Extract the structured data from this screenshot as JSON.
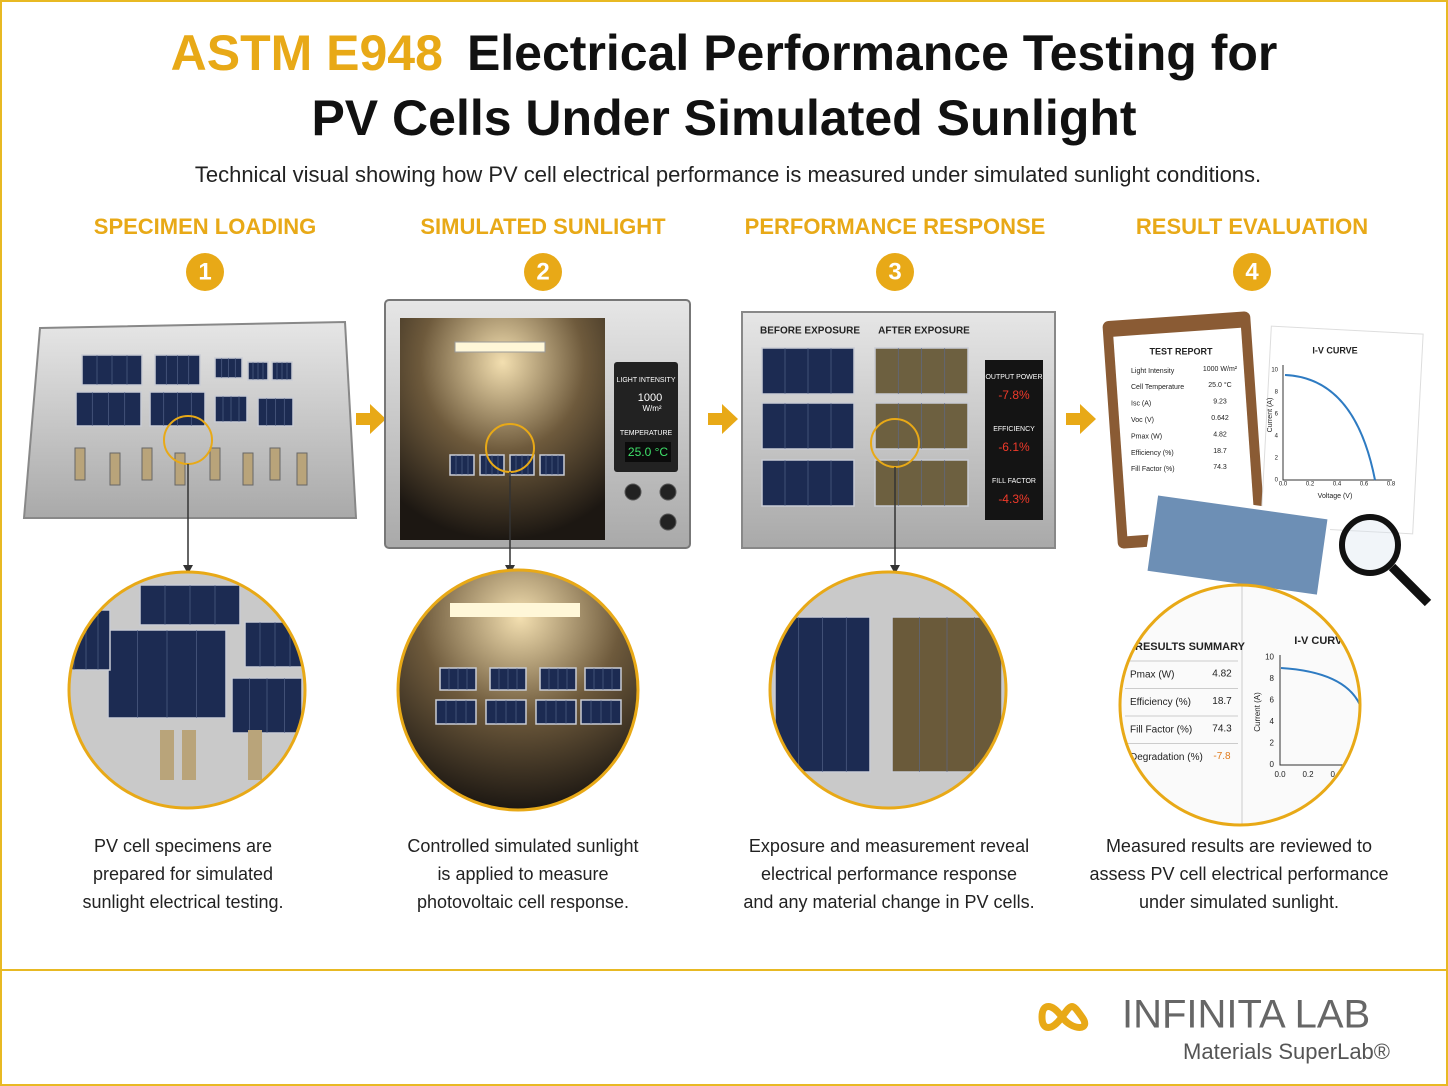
{
  "header": {
    "title_code": "ASTM E948",
    "title_line1": "Electrical Performance Testing for",
    "title_line2": "PV Cells Under Simulated Sunlight",
    "subtitle": "Technical visual showing how PV cell electrical performance is measured under simulated sunlight conditions."
  },
  "steps": [
    {
      "heading": "SPECIMEN LOADING",
      "number": "1",
      "caption": [
        "PV cell specimens are",
        "prepared for simulated",
        "sunlight electrical testing."
      ]
    },
    {
      "heading": "SIMULATED SUNLIGHT",
      "number": "2",
      "caption": [
        "Controlled simulated sunlight",
        "is applied to measure",
        "photovoltaic cell response."
      ]
    },
    {
      "heading": "PERFORMANCE RESPONSE",
      "number": "3",
      "caption": [
        "Exposure and measurement reveal",
        "electrical performance response",
        "and any material change in PV cells."
      ]
    },
    {
      "heading": "RESULT EVALUATION",
      "number": "4",
      "caption": [
        "Measured results are reviewed to",
        "assess PV cell electrical performance",
        "under simulated sunlight."
      ]
    }
  ],
  "chamber_display": {
    "intensity_label": "LIGHT INTENSITY",
    "intensity_value": "1000",
    "intensity_unit": "W/m²",
    "temperature_label": "TEMPERATURE",
    "temperature_value": "25.0 °C"
  },
  "exposure_panel": {
    "before": "BEFORE EXPOSURE",
    "after": "AFTER EXPOSURE",
    "metrics": [
      {
        "label": "OUTPUT POWER",
        "value": "-7.8%"
      },
      {
        "label": "EFFICIENCY",
        "value": "-6.1%"
      },
      {
        "label": "FILL FACTOR",
        "value": "-4.3%"
      }
    ]
  },
  "test_report": {
    "title": "TEST REPORT",
    "rows": [
      [
        "Light Intensity",
        "1000 W/m²"
      ],
      [
        "Cell Temperature",
        "25.0 °C"
      ],
      [
        "Isc (A)",
        "9.23"
      ],
      [
        "Voc (V)",
        "0.642"
      ],
      [
        "Pmax (W)",
        "4.82"
      ],
      [
        "Efficiency (%)",
        "18.7"
      ],
      [
        "Fill Factor (%)",
        "74.3"
      ]
    ]
  },
  "iv_chart": {
    "title": "I-V CURVE",
    "x_label": "Voltage (V)",
    "y_label": "Current (A)",
    "xticks": [
      "0.0",
      "0.2",
      "0.4",
      "0.6",
      "0.8"
    ],
    "yticks": [
      "0",
      "2",
      "4",
      "6",
      "8",
      "10"
    ]
  },
  "results_summary": {
    "title": "RESULTS SUMMARY",
    "rows": [
      [
        "Pmax (W)",
        "4.82"
      ],
      [
        "Efficiency (%)",
        "18.7"
      ],
      [
        "Fill Factor (%)",
        "74.3"
      ],
      [
        "Degradation (%)",
        "-7.8"
      ]
    ]
  },
  "footer": {
    "brand": "INFINITA LAB",
    "tagline": "Materials SuperLab®"
  }
}
